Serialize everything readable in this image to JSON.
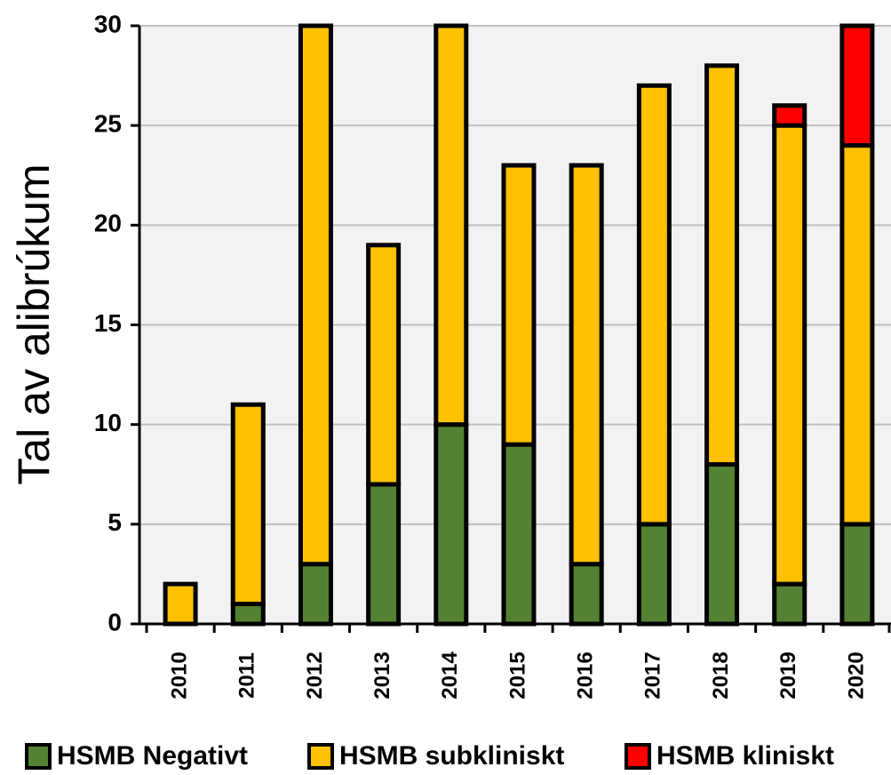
{
  "chart_data": {
    "type": "stacked_bar",
    "y_label": "Tal av alibrúkum",
    "categories": [
      "2010",
      "2011",
      "2012",
      "2013",
      "2014",
      "2015",
      "2016",
      "2017",
      "2018",
      "2019",
      "2020"
    ],
    "series": [
      {
        "name": "HSMB Negativt",
        "color": "#548235",
        "values": [
          0,
          1,
          3,
          7,
          10,
          9,
          3,
          5,
          8,
          2,
          5
        ]
      },
      {
        "name": "HSMB subkliniskt",
        "color": "#ffc000",
        "values": [
          2,
          10,
          27,
          12,
          20,
          14,
          20,
          22,
          20,
          23,
          19
        ]
      },
      {
        "name": "HSMB kliniskt",
        "color": "#ff0000",
        "values": [
          0,
          0,
          0,
          0,
          0,
          0,
          0,
          0,
          0,
          1,
          6
        ]
      }
    ],
    "ylim": [
      0,
      30
    ],
    "yticks": [
      0,
      5,
      10,
      15,
      20,
      25,
      30
    ],
    "grid": true,
    "legend": "bottom"
  }
}
